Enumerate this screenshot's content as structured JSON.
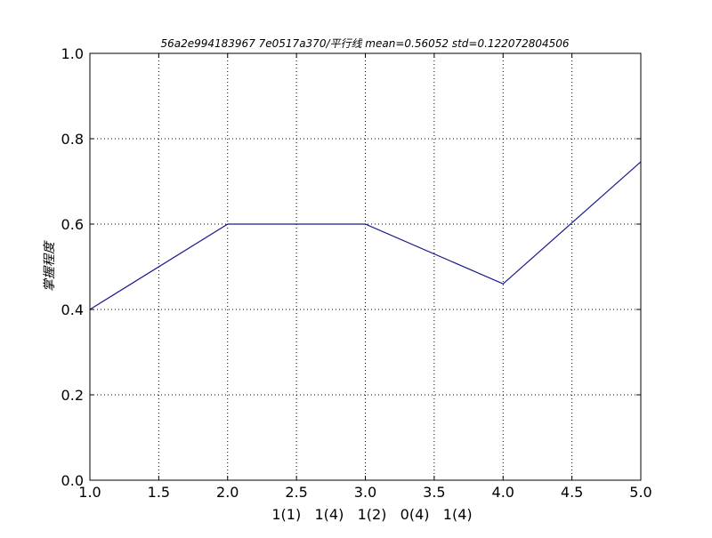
{
  "chart_data": {
    "type": "line",
    "title": "56a2e994183967 7e0517a370/平行线 mean=0.56052 std=0.122072804506",
    "xlabel": "1(1)   1(4)   1(2)   0(4)   1(4)",
    "ylabel": "掌握程度",
    "xlim": [
      1.0,
      5.0
    ],
    "ylim": [
      0.0,
      1.0
    ],
    "grid": true,
    "x_ticks": [
      "1.0",
      "1.5",
      "2.0",
      "2.5",
      "3.0",
      "3.5",
      "4.0",
      "4.5",
      "5.0"
    ],
    "y_ticks": [
      "0.0",
      "0.2",
      "0.4",
      "0.6",
      "0.8",
      "1.0"
    ],
    "series": [
      {
        "color": "#1a1a8c",
        "x": [
          1,
          2,
          3,
          4,
          5
        ],
        "y": [
          0.4,
          0.6,
          0.6,
          0.46,
          0.746
        ]
      }
    ]
  }
}
